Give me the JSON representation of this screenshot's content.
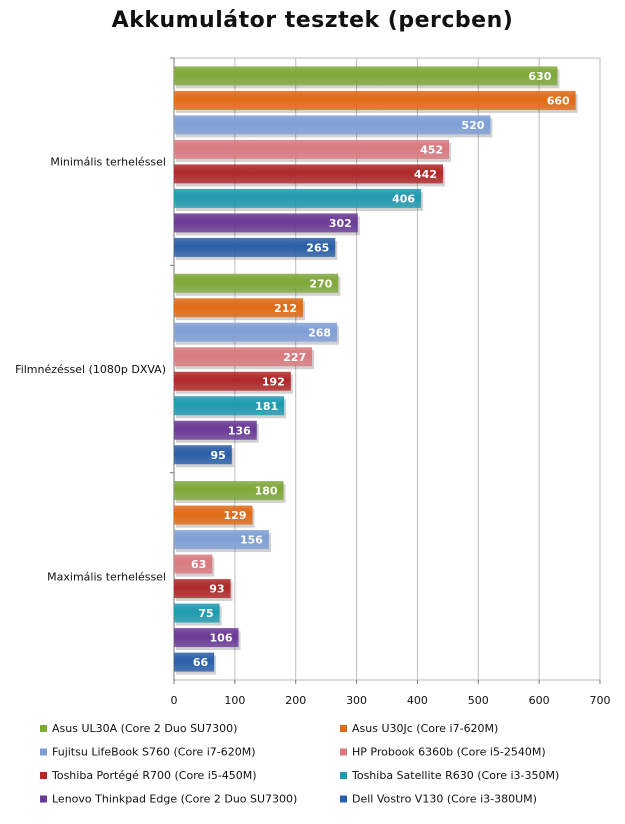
{
  "chart_data": {
    "type": "bar",
    "orientation": "horizontal",
    "title": "Akkumulátor tesztek (percben)",
    "categories": [
      "Minimális terheléssel",
      "Filmnézéssel (1080p DXVA)",
      "Maximális terheléssel"
    ],
    "xlim": [
      0,
      700
    ],
    "xticks": [
      0,
      100,
      200,
      300,
      400,
      500,
      600,
      700
    ],
    "grid": true,
    "legend_position": "bottom",
    "series": [
      {
        "name": "Asus UL30A (Core 2 Duo SU7300)",
        "color": "#7fa83a",
        "values": [
          630,
          270,
          180
        ]
      },
      {
        "name": "Asus U30Jc (Core i7-620M)",
        "color": "#e06b16",
        "values": [
          660,
          212,
          129
        ]
      },
      {
        "name": "Fujitsu LifeBook S760 (Core i7-620M)",
        "color": "#7f9fd6",
        "values": [
          520,
          268,
          156
        ]
      },
      {
        "name": "HP Probook 6360b (Core i5-2540M)",
        "color": "#d97a80",
        "values": [
          452,
          227,
          63
        ]
      },
      {
        "name": "Toshiba Portégé R700 (Core i5-450M)",
        "color": "#b02828",
        "values": [
          442,
          192,
          93
        ]
      },
      {
        "name": "Toshiba Satellite R630 (Core i3-350M)",
        "color": "#1f9ab0",
        "values": [
          406,
          181,
          75
        ]
      },
      {
        "name": "Lenovo Thinkpad Edge (Core 2 Duo SU7300)",
        "color": "#6a3a96",
        "values": [
          302,
          136,
          106
        ]
      },
      {
        "name": "Dell Vostro V130 (Core i3-380UM)",
        "color": "#2a5ea8",
        "values": [
          265,
          95,
          66
        ]
      }
    ]
  }
}
